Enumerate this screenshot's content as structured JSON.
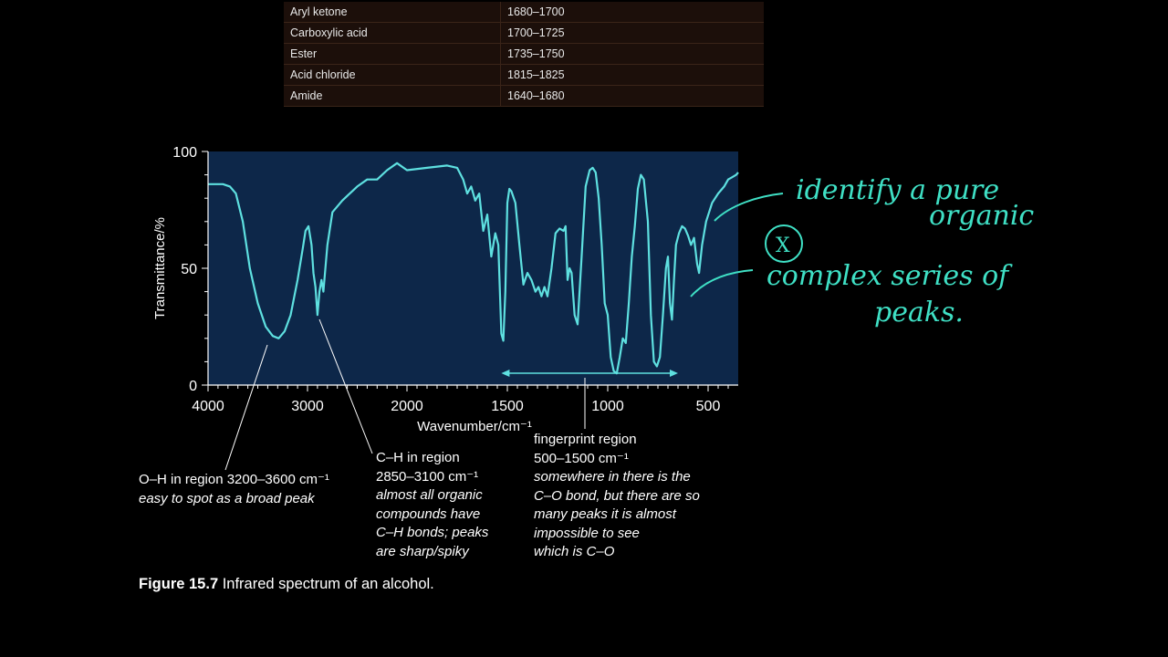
{
  "table": {
    "rows": [
      {
        "group": "Aryl ketone",
        "range": "1680–1700"
      },
      {
        "group": "Carboxylic acid",
        "range": "1700–1725"
      },
      {
        "group": "Ester",
        "range": "1735–1750"
      },
      {
        "group": "Acid chloride",
        "range": "1815–1825"
      },
      {
        "group": "Amide",
        "range": "1640–1680"
      }
    ]
  },
  "chart_data": {
    "type": "line",
    "xlabel": "Wavenumber/cm⁻¹",
    "ylabel": "Transmittance/%",
    "xlim": [
      4000,
      350
    ],
    "ylim": [
      0,
      100
    ],
    "xticks": [
      "4000",
      "3000",
      "2000",
      "1500",
      "1000",
      "500"
    ],
    "yticks": [
      "100",
      "50",
      "0"
    ],
    "grid": false,
    "colors": {
      "plot_bg": "#0d2749",
      "line": "#5ee0e0"
    },
    "series": [
      {
        "x": [
          4000,
          3850,
          3780,
          3720,
          3650,
          3580,
          3500,
          3420,
          3350,
          3290,
          3230,
          3170,
          3100,
          3050,
          3020,
          2990,
          2960,
          2940,
          2920,
          2900,
          2880,
          2860,
          2840,
          2800,
          2750,
          2650,
          2500,
          2400,
          2300,
          2200,
          2100,
          2000,
          1900,
          1800,
          1750,
          1720,
          1700,
          1680,
          1660,
          1640,
          1620,
          1600,
          1580,
          1560,
          1545,
          1530,
          1520,
          1510,
          1500,
          1490,
          1480,
          1460,
          1440,
          1420,
          1400,
          1380,
          1360,
          1345,
          1330,
          1315,
          1300,
          1280,
          1260,
          1240,
          1220,
          1210,
          1200,
          1190,
          1180,
          1165,
          1150,
          1130,
          1110,
          1090,
          1075,
          1060,
          1045,
          1030,
          1015,
          1000,
          985,
          970,
          955,
          940,
          925,
          910,
          895,
          880,
          865,
          850,
          835,
          820,
          800,
          785,
          770,
          755,
          740,
          725,
          710,
          700,
          690,
          680,
          670,
          660,
          645,
          630,
          615,
          600,
          585,
          570,
          555,
          545,
          530,
          510,
          480,
          450,
          420,
          400,
          380,
          360,
          350
        ],
        "y": [
          86,
          86,
          85,
          82,
          70,
          50,
          35,
          25,
          21,
          20,
          23,
          30,
          45,
          58,
          66,
          68,
          60,
          48,
          42,
          30,
          40,
          45,
          40,
          60,
          74,
          79,
          85,
          88,
          88,
          92,
          95,
          92,
          93,
          94,
          93,
          88,
          82,
          85,
          79,
          82,
          66,
          73,
          55,
          65,
          60,
          22,
          19,
          40,
          78,
          84,
          83,
          78,
          60,
          43,
          48,
          45,
          40,
          42,
          38,
          42,
          38,
          50,
          65,
          67,
          66,
          68,
          45,
          50,
          48,
          30,
          26,
          55,
          85,
          92,
          93,
          91,
          80,
          60,
          35,
          30,
          12,
          6,
          5,
          12,
          20,
          18,
          35,
          55,
          68,
          84,
          90,
          88,
          70,
          30,
          10,
          8,
          12,
          30,
          50,
          55,
          35,
          28,
          45,
          60,
          65,
          68,
          67,
          64,
          60,
          63,
          52,
          48,
          60,
          70,
          78,
          82,
          85,
          88,
          89,
          90,
          91
        ]
      }
    ],
    "double_arrow_range": [
      1530,
      650
    ]
  },
  "annotations": {
    "oh_title": "O–H in region 3200–3600 cm⁻¹",
    "oh_note": "easy to spot as a broad peak",
    "ch_title_1": "C–H in region",
    "ch_title_2": "2850–3100 cm⁻¹",
    "ch_note_1": "almost all organic",
    "ch_note_2": "compounds have",
    "ch_note_3": "C–H bonds; peaks",
    "ch_note_4": "are sharp/spiky",
    "fp_title_1": "fingerprint region",
    "fp_title_2": "500–1500 cm⁻¹",
    "fp_note_1": "somewhere in there is the",
    "fp_note_2": "C–O bond, but there are so",
    "fp_note_3": "many peaks it is almost",
    "fp_note_4": "impossible to see",
    "fp_note_5": "which is C–O"
  },
  "caption": {
    "label": "Figure 15.7",
    "text": " Infrared spectrum of an alcohol."
  },
  "handwriting": {
    "line1": "identify a pure",
    "line2": "organic",
    "symbol": "X",
    "line3": "complex series of",
    "line4": "peaks."
  }
}
